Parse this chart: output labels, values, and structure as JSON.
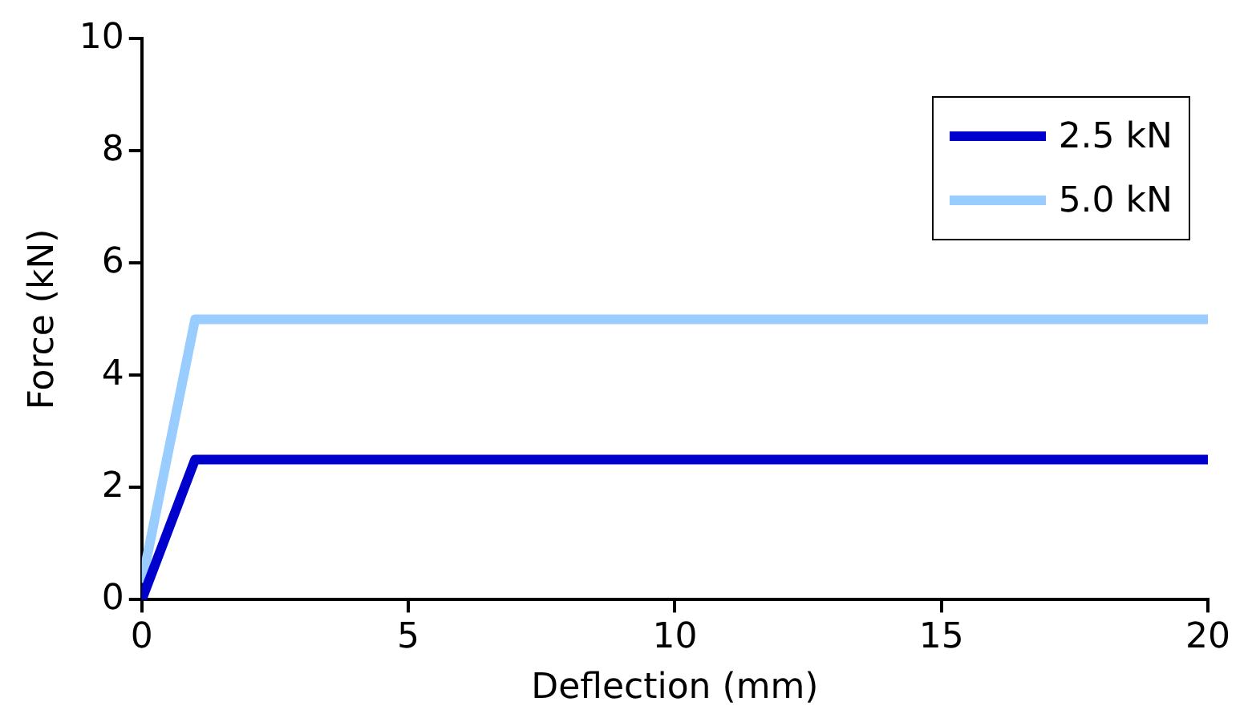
{
  "chart_data": {
    "type": "line",
    "xlabel": "Deflection (mm)",
    "ylabel": "Force (kN)",
    "xlim": [
      0,
      20
    ],
    "xticks": [
      0,
      5,
      10,
      15,
      20
    ],
    "ylim": [
      0,
      10
    ],
    "yticks": [
      0,
      2,
      4,
      6,
      8,
      10
    ],
    "grid": false,
    "legend": "top right",
    "marker": "none",
    "line_style": "solid",
    "series": [
      {
        "name": "2.5 kN",
        "color": "#0000cc",
        "x": [
          0,
          1,
          20
        ],
        "values": [
          0,
          2.5,
          2.5
        ]
      },
      {
        "name": "5.0 kN",
        "color": "#99ccff",
        "x": [
          0,
          1,
          20
        ],
        "values": [
          0.3,
          5,
          5
        ]
      }
    ]
  }
}
